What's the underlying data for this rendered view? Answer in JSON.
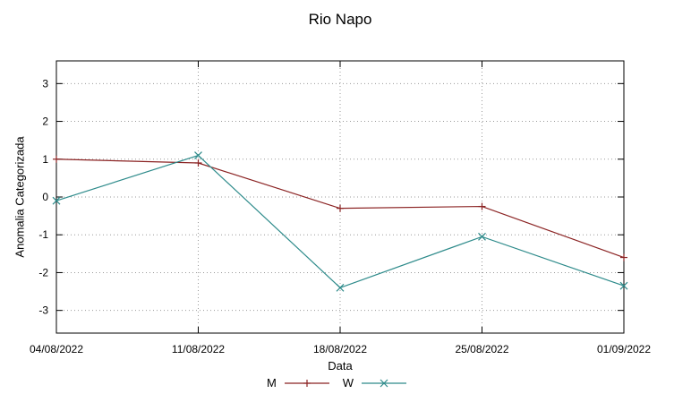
{
  "chart_data": {
    "type": "line",
    "title": "Rio Napo",
    "xlabel": "Data",
    "ylabel": "Anomalia Categorizada",
    "categories": [
      "04/08/2022",
      "11/08/2022",
      "18/08/2022",
      "25/08/2022",
      "01/09/2022"
    ],
    "yticks": [
      -3,
      -2,
      -1,
      0,
      1,
      2,
      3
    ],
    "ylim": [
      -3.6,
      3.6
    ],
    "grid": true,
    "legend_position": "bottom-center",
    "series": [
      {
        "name": "M",
        "marker": "plus",
        "color": "#8b2323",
        "values": [
          1.0,
          0.9,
          -0.3,
          -0.25,
          -1.6
        ]
      },
      {
        "name": "W",
        "marker": "cross",
        "color": "#2e8b8b",
        "values": [
          -0.1,
          1.1,
          -2.4,
          -1.05,
          -2.35
        ]
      }
    ]
  }
}
